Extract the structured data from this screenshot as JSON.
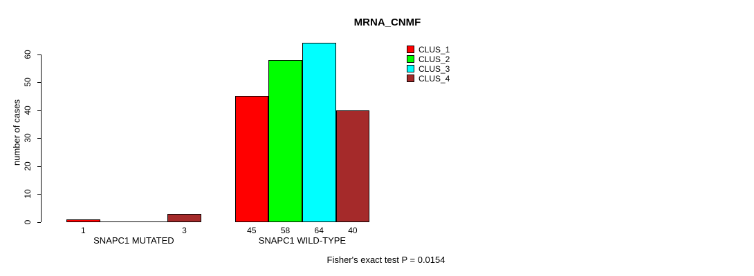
{
  "chart_data": {
    "type": "bar",
    "title": "MRNA_CNMF",
    "ylabel": "number of cases",
    "xlabel": "",
    "ylim": [
      0,
      60
    ],
    "yticks": [
      0,
      10,
      20,
      30,
      40,
      50,
      60
    ],
    "grid": false,
    "legend_position": "top-right",
    "categories": [
      "SNAPC1 MUTATED",
      "SNAPC1 WILD-TYPE"
    ],
    "series": [
      {
        "name": "CLUS_1",
        "color": "#FF0000",
        "values": [
          1,
          45
        ]
      },
      {
        "name": "CLUS_2",
        "color": "#00FF00",
        "values": [
          0,
          58
        ]
      },
      {
        "name": "CLUS_3",
        "color": "#00FFFF",
        "values": [
          0,
          64
        ]
      },
      {
        "name": "CLUS_4",
        "color": "#A52A2A",
        "values": [
          3,
          40
        ]
      }
    ],
    "bar_value_labels": [
      [
        "1",
        "",
        "",
        "3"
      ],
      [
        "45",
        "58",
        "64",
        "40"
      ]
    ],
    "annotation": "Fisher's exact test P = 0.0154"
  }
}
